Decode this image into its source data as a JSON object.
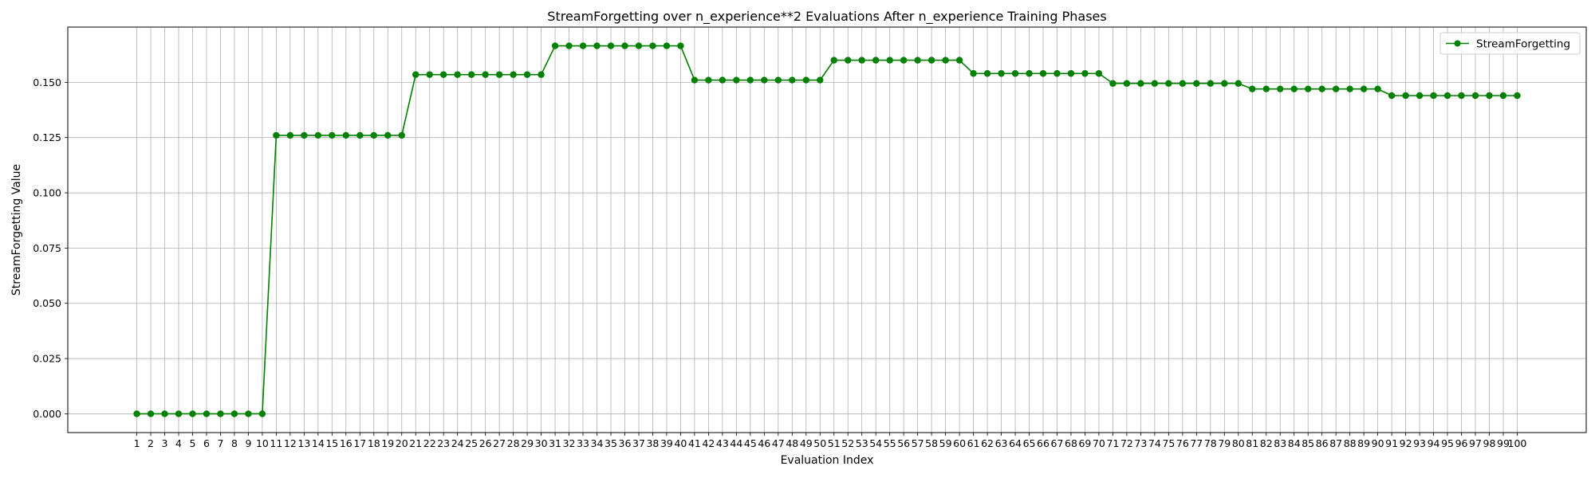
{
  "chart_data": {
    "type": "line",
    "title": "StreamForgetting over n_experience**2 Evaluations After n_experience Training Phases",
    "xlabel": "Evaluation Index",
    "ylabel": "StreamForgetting Value",
    "grid": true,
    "legend_position": "top-right",
    "ylim": [
      -0.0085,
      0.175
    ],
    "y_ticks": [
      "0.000",
      "0.025",
      "0.050",
      "0.075",
      "0.100",
      "0.125",
      "0.150"
    ],
    "x": [
      1,
      2,
      3,
      4,
      5,
      6,
      7,
      8,
      9,
      10,
      11,
      12,
      13,
      14,
      15,
      16,
      17,
      18,
      19,
      20,
      21,
      22,
      23,
      24,
      25,
      26,
      27,
      28,
      29,
      30,
      31,
      32,
      33,
      34,
      35,
      36,
      37,
      38,
      39,
      40,
      41,
      42,
      43,
      44,
      45,
      46,
      47,
      48,
      49,
      50,
      51,
      52,
      53,
      54,
      55,
      56,
      57,
      58,
      59,
      60,
      61,
      62,
      63,
      64,
      65,
      66,
      67,
      68,
      69,
      70,
      71,
      72,
      73,
      74,
      75,
      76,
      77,
      78,
      79,
      80,
      81,
      82,
      83,
      84,
      85,
      86,
      87,
      88,
      89,
      90,
      91,
      92,
      93,
      94,
      95,
      96,
      97,
      98,
      99,
      100
    ],
    "series": [
      {
        "name": "StreamForgetting",
        "color": "#008000",
        "values": [
          0.0,
          0.0,
          0.0,
          0.0,
          0.0,
          0.0,
          0.0,
          0.0,
          0.0,
          0.0,
          0.126,
          0.126,
          0.126,
          0.126,
          0.126,
          0.126,
          0.126,
          0.126,
          0.126,
          0.126,
          0.1535,
          0.1535,
          0.1535,
          0.1535,
          0.1535,
          0.1535,
          0.1535,
          0.1535,
          0.1535,
          0.1535,
          0.1665,
          0.1665,
          0.1665,
          0.1665,
          0.1665,
          0.1665,
          0.1665,
          0.1665,
          0.1665,
          0.1665,
          0.151,
          0.151,
          0.151,
          0.151,
          0.151,
          0.151,
          0.151,
          0.151,
          0.151,
          0.151,
          0.16,
          0.16,
          0.16,
          0.16,
          0.16,
          0.16,
          0.16,
          0.16,
          0.16,
          0.16,
          0.154,
          0.154,
          0.154,
          0.154,
          0.154,
          0.154,
          0.154,
          0.154,
          0.154,
          0.154,
          0.1495,
          0.1495,
          0.1495,
          0.1495,
          0.1495,
          0.1495,
          0.1495,
          0.1495,
          0.1495,
          0.1495,
          0.147,
          0.147,
          0.147,
          0.147,
          0.147,
          0.147,
          0.147,
          0.147,
          0.147,
          0.147,
          0.144,
          0.144,
          0.144,
          0.144,
          0.144,
          0.144,
          0.144,
          0.144,
          0.144,
          0.144
        ]
      }
    ]
  }
}
